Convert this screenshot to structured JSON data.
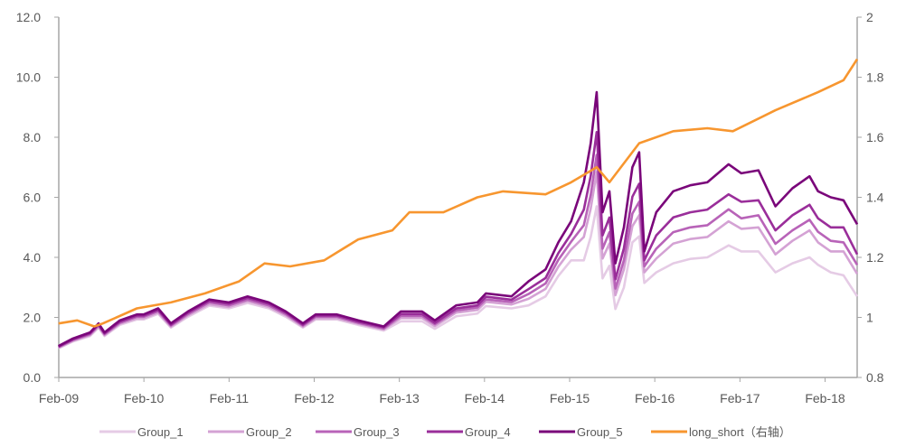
{
  "chart_data": {
    "type": "line",
    "title": "",
    "xlabel": "",
    "ylabel": "",
    "ylim": [
      0,
      12
    ],
    "y2lim": [
      0.8,
      2.0
    ],
    "xlim": [
      2009.083,
      2018.46
    ],
    "grid": false,
    "legend_position": "bottom",
    "y_ticks": [
      "0.0",
      "2.0",
      "4.0",
      "6.0",
      "8.0",
      "10.0",
      "12.0"
    ],
    "y_tick_values": [
      0,
      2,
      4,
      6,
      8,
      10,
      12
    ],
    "y2_ticks": [
      "0.8",
      "1",
      "1.2",
      "1.4",
      "1.6",
      "1.8",
      "2"
    ],
    "y2_tick_values": [
      0.8,
      1.0,
      1.2,
      1.4,
      1.6,
      1.8,
      2.0
    ],
    "x_ticks": [
      "Feb-09",
      "Feb-10",
      "Feb-11",
      "Feb-12",
      "Feb-13",
      "Feb-14",
      "Feb-15",
      "Feb-16",
      "Feb-17",
      "Feb-18"
    ],
    "x_tick_values": [
      2009.083,
      2010.083,
      2011.083,
      2012.083,
      2013.083,
      2014.083,
      2015.083,
      2016.083,
      2017.083,
      2018.083
    ],
    "x": [
      2009.08,
      2009.25,
      2009.45,
      2009.55,
      2009.62,
      2009.8,
      2010.0,
      2010.08,
      2010.25,
      2010.4,
      2010.6,
      2010.85,
      2011.08,
      2011.3,
      2011.55,
      2011.75,
      2011.95,
      2012.1,
      2012.35,
      2012.6,
      2012.9,
      2013.1,
      2013.35,
      2013.5,
      2013.75,
      2014.0,
      2014.1,
      2014.4,
      2014.6,
      2014.8,
      2014.95,
      2015.1,
      2015.25,
      2015.33,
      2015.4,
      2015.47,
      2015.55,
      2015.62,
      2015.72,
      2015.82,
      2015.9,
      2015.96,
      2016.1,
      2016.3,
      2016.5,
      2016.7,
      2016.95,
      2017.1,
      2017.3,
      2017.5,
      2017.7,
      2017.9,
      2018.0,
      2018.15,
      2018.3,
      2018.46
    ],
    "series": [
      {
        "name": "Group_1",
        "axis": "left",
        "color": "#e5cbe5",
        "values": [
          0.97,
          1.2,
          1.38,
          1.66,
          1.38,
          1.75,
          1.93,
          1.93,
          2.12,
          1.66,
          2.02,
          2.39,
          2.3,
          2.48,
          2.3,
          2.02,
          1.66,
          1.93,
          1.93,
          1.75,
          1.56,
          1.87,
          1.87,
          1.62,
          2.04,
          2.13,
          2.38,
          2.3,
          2.4,
          2.7,
          3.38,
          3.9,
          3.9,
          4.68,
          5.7,
          3.3,
          3.72,
          2.28,
          3.0,
          4.5,
          4.7,
          3.15,
          3.5,
          3.8,
          3.95,
          4.0,
          4.4,
          4.2,
          4.2,
          3.5,
          3.8,
          4.0,
          3.75,
          3.5,
          3.4,
          2.7
        ]
      },
      {
        "name": "Group_2",
        "axis": "left",
        "color": "#d4a2d4",
        "values": [
          0.99,
          1.22,
          1.41,
          1.69,
          1.41,
          1.79,
          1.97,
          1.97,
          2.16,
          1.69,
          2.07,
          2.44,
          2.35,
          2.54,
          2.35,
          2.07,
          1.69,
          1.97,
          1.97,
          1.79,
          1.6,
          1.98,
          1.98,
          1.71,
          2.16,
          2.25,
          2.52,
          2.43,
          2.62,
          2.95,
          3.69,
          4.26,
          4.68,
          5.62,
          6.84,
          3.96,
          4.46,
          2.74,
          3.6,
          5.04,
          5.4,
          3.5,
          3.96,
          4.46,
          4.61,
          4.68,
          5.2,
          4.95,
          5.0,
          4.1,
          4.55,
          4.9,
          4.5,
          4.2,
          4.2,
          3.45
        ]
      },
      {
        "name": "Group_3",
        "axis": "left",
        "color": "#b863b8",
        "values": [
          1.01,
          1.25,
          1.44,
          1.73,
          1.44,
          1.82,
          2.02,
          2.02,
          2.21,
          1.73,
          2.11,
          2.5,
          2.4,
          2.59,
          2.4,
          2.11,
          1.73,
          2.02,
          2.02,
          1.82,
          1.63,
          2.05,
          2.05,
          1.77,
          2.23,
          2.33,
          2.6,
          2.51,
          2.78,
          3.13,
          3.92,
          4.52,
          5.07,
          6.08,
          7.41,
          4.29,
          4.84,
          2.96,
          3.9,
          5.46,
          5.85,
          3.7,
          4.29,
          4.84,
          5.0,
          5.07,
          5.6,
          5.3,
          5.4,
          4.45,
          4.9,
          5.25,
          4.85,
          4.55,
          4.5,
          3.75
        ]
      },
      {
        "name": "Group_4",
        "axis": "left",
        "color": "#9a2e9a",
        "values": [
          1.03,
          1.27,
          1.47,
          1.76,
          1.47,
          1.86,
          2.06,
          2.06,
          2.25,
          1.76,
          2.16,
          2.55,
          2.45,
          2.65,
          2.45,
          2.16,
          1.76,
          2.06,
          2.06,
          1.86,
          1.67,
          2.11,
          2.11,
          1.82,
          2.3,
          2.4,
          2.69,
          2.59,
          2.94,
          3.31,
          4.14,
          4.78,
          5.59,
          6.71,
          8.17,
          4.73,
          5.33,
          3.27,
          4.3,
          6.02,
          6.45,
          3.9,
          4.73,
          5.33,
          5.5,
          5.59,
          6.1,
          5.85,
          5.9,
          4.9,
          5.4,
          5.75,
          5.3,
          5.0,
          5.0,
          4.1
        ]
      },
      {
        "name": "Group_5",
        "axis": "left",
        "color": "#7a067a",
        "values": [
          1.05,
          1.3,
          1.5,
          1.8,
          1.5,
          1.9,
          2.1,
          2.1,
          2.3,
          1.8,
          2.2,
          2.6,
          2.5,
          2.7,
          2.5,
          2.2,
          1.8,
          2.1,
          2.1,
          1.9,
          1.7,
          2.2,
          2.2,
          1.9,
          2.4,
          2.5,
          2.8,
          2.7,
          3.2,
          3.6,
          4.5,
          5.2,
          6.5,
          7.8,
          9.5,
          5.5,
          6.2,
          3.8,
          5.0,
          7.0,
          7.5,
          4.2,
          5.5,
          6.2,
          6.4,
          6.5,
          7.1,
          6.8,
          6.9,
          5.7,
          6.3,
          6.7,
          6.2,
          6.0,
          5.9,
          5.1
        ]
      }
    ],
    "series_right": {
      "name": "long_short（右轴）",
      "axis": "right",
      "color": "#f7962f",
      "x": [
        2009.08,
        2009.3,
        2009.5,
        2009.6,
        2010.0,
        2010.4,
        2010.8,
        2011.2,
        2011.5,
        2011.8,
        2012.2,
        2012.6,
        2013.0,
        2013.2,
        2013.6,
        2014.0,
        2014.3,
        2014.8,
        2015.1,
        2015.4,
        2015.55,
        2015.9,
        2016.3,
        2016.7,
        2017.0,
        2017.5,
        2018.0,
        2018.3,
        2018.46
      ],
      "values": [
        0.98,
        0.99,
        0.97,
        0.98,
        1.03,
        1.05,
        1.08,
        1.12,
        1.18,
        1.17,
        1.19,
        1.26,
        1.29,
        1.35,
        1.35,
        1.4,
        1.42,
        1.41,
        1.45,
        1.5,
        1.45,
        1.58,
        1.62,
        1.63,
        1.62,
        1.69,
        1.75,
        1.79,
        1.86
      ]
    },
    "legend": [
      "Group_1",
      "Group_2",
      "Group_3",
      "Group_4",
      "Group_5",
      "long_short（右轴）"
    ]
  }
}
